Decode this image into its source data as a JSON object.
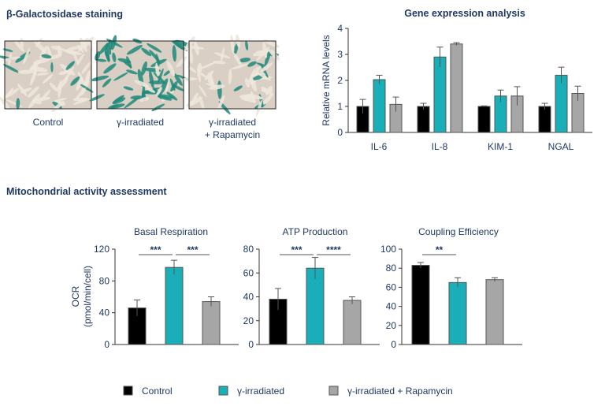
{
  "colors": {
    "control": "#000000",
    "irradiated": "#1aaeb8",
    "rapamycin": "#a6a6a6",
    "text": "#1f3864"
  },
  "staining": {
    "title": "β-Galactosidase staining",
    "panels": [
      {
        "label": [
          "Control"
        ],
        "stain_level": 0.15
      },
      {
        "label": [
          "γ-irradiated"
        ],
        "stain_level": 0.85
      },
      {
        "label": [
          "γ-irradiated",
          "+ Rapamycin"
        ],
        "stain_level": 0.3
      }
    ]
  },
  "mito_title": "Mitochondrial activity assessment",
  "legend": [
    {
      "label": "Control",
      "series": "control"
    },
    {
      "label": "γ-irradiated",
      "series": "irradiated"
    },
    {
      "label": "γ-irradiated + Rapamycin",
      "series": "rapamycin"
    }
  ],
  "chart_data": [
    {
      "type": "bar",
      "title": "Gene expression analysis",
      "ylabel": "Relative mRNA levels",
      "ylim": [
        0,
        4
      ],
      "yticks": [
        0,
        1,
        2,
        3,
        4
      ],
      "categories": [
        "IL-6",
        "IL-8",
        "KIM-1",
        "NGAL"
      ],
      "series": [
        {
          "name": "Control",
          "values": [
            1.0,
            1.0,
            1.0,
            1.0
          ],
          "errors": [
            0.27,
            0.12,
            0.02,
            0.12
          ]
        },
        {
          "name": "γ-irradiated",
          "values": [
            2.03,
            2.9,
            1.4,
            2.2
          ],
          "errors": [
            0.17,
            0.38,
            0.23,
            0.31
          ]
        },
        {
          "name": "γ-irradiated + Rapamycin",
          "values": [
            1.08,
            3.4,
            1.4,
            1.5
          ],
          "errors": [
            0.28,
            0.05,
            0.36,
            0.28
          ]
        }
      ]
    },
    {
      "type": "bar",
      "title": "Basal Respiration",
      "ylabel": [
        "OCR",
        "(pmol/min/cell)"
      ],
      "ylim": [
        0,
        120
      ],
      "yticks": [
        0,
        40,
        80,
        120
      ],
      "categories": [
        "Control",
        "γ-irradiated",
        "γ-irradiated + Rapamycin"
      ],
      "values": [
        46,
        97,
        54
      ],
      "errors": [
        10,
        9,
        6
      ],
      "significance": [
        {
          "from": 0,
          "to": 1,
          "label": "***"
        },
        {
          "from": 1,
          "to": 2,
          "label": "***"
        }
      ]
    },
    {
      "type": "bar",
      "title": "ATP Production",
      "ylim": [
        0,
        80
      ],
      "yticks": [
        0,
        20,
        40,
        60,
        80
      ],
      "categories": [
        "Control",
        "γ-irradiated",
        "γ-irradiated + Rapamycin"
      ],
      "values": [
        38,
        64,
        37
      ],
      "errors": [
        9,
        9,
        3
      ],
      "significance": [
        {
          "from": 0,
          "to": 1,
          "label": "***"
        },
        {
          "from": 1,
          "to": 2,
          "label": "****"
        }
      ]
    },
    {
      "type": "bar",
      "title": "Coupling Efficiency",
      "ylim": [
        0,
        100
      ],
      "yticks": [
        0,
        20,
        40,
        60,
        80,
        100
      ],
      "categories": [
        "Control",
        "γ-irradiated",
        "γ-irradiated + Rapamycin"
      ],
      "values": [
        83,
        65,
        68
      ],
      "errors": [
        3,
        5,
        2
      ],
      "significance": [
        {
          "from": 0,
          "to": 1,
          "label": "**"
        }
      ]
    }
  ]
}
